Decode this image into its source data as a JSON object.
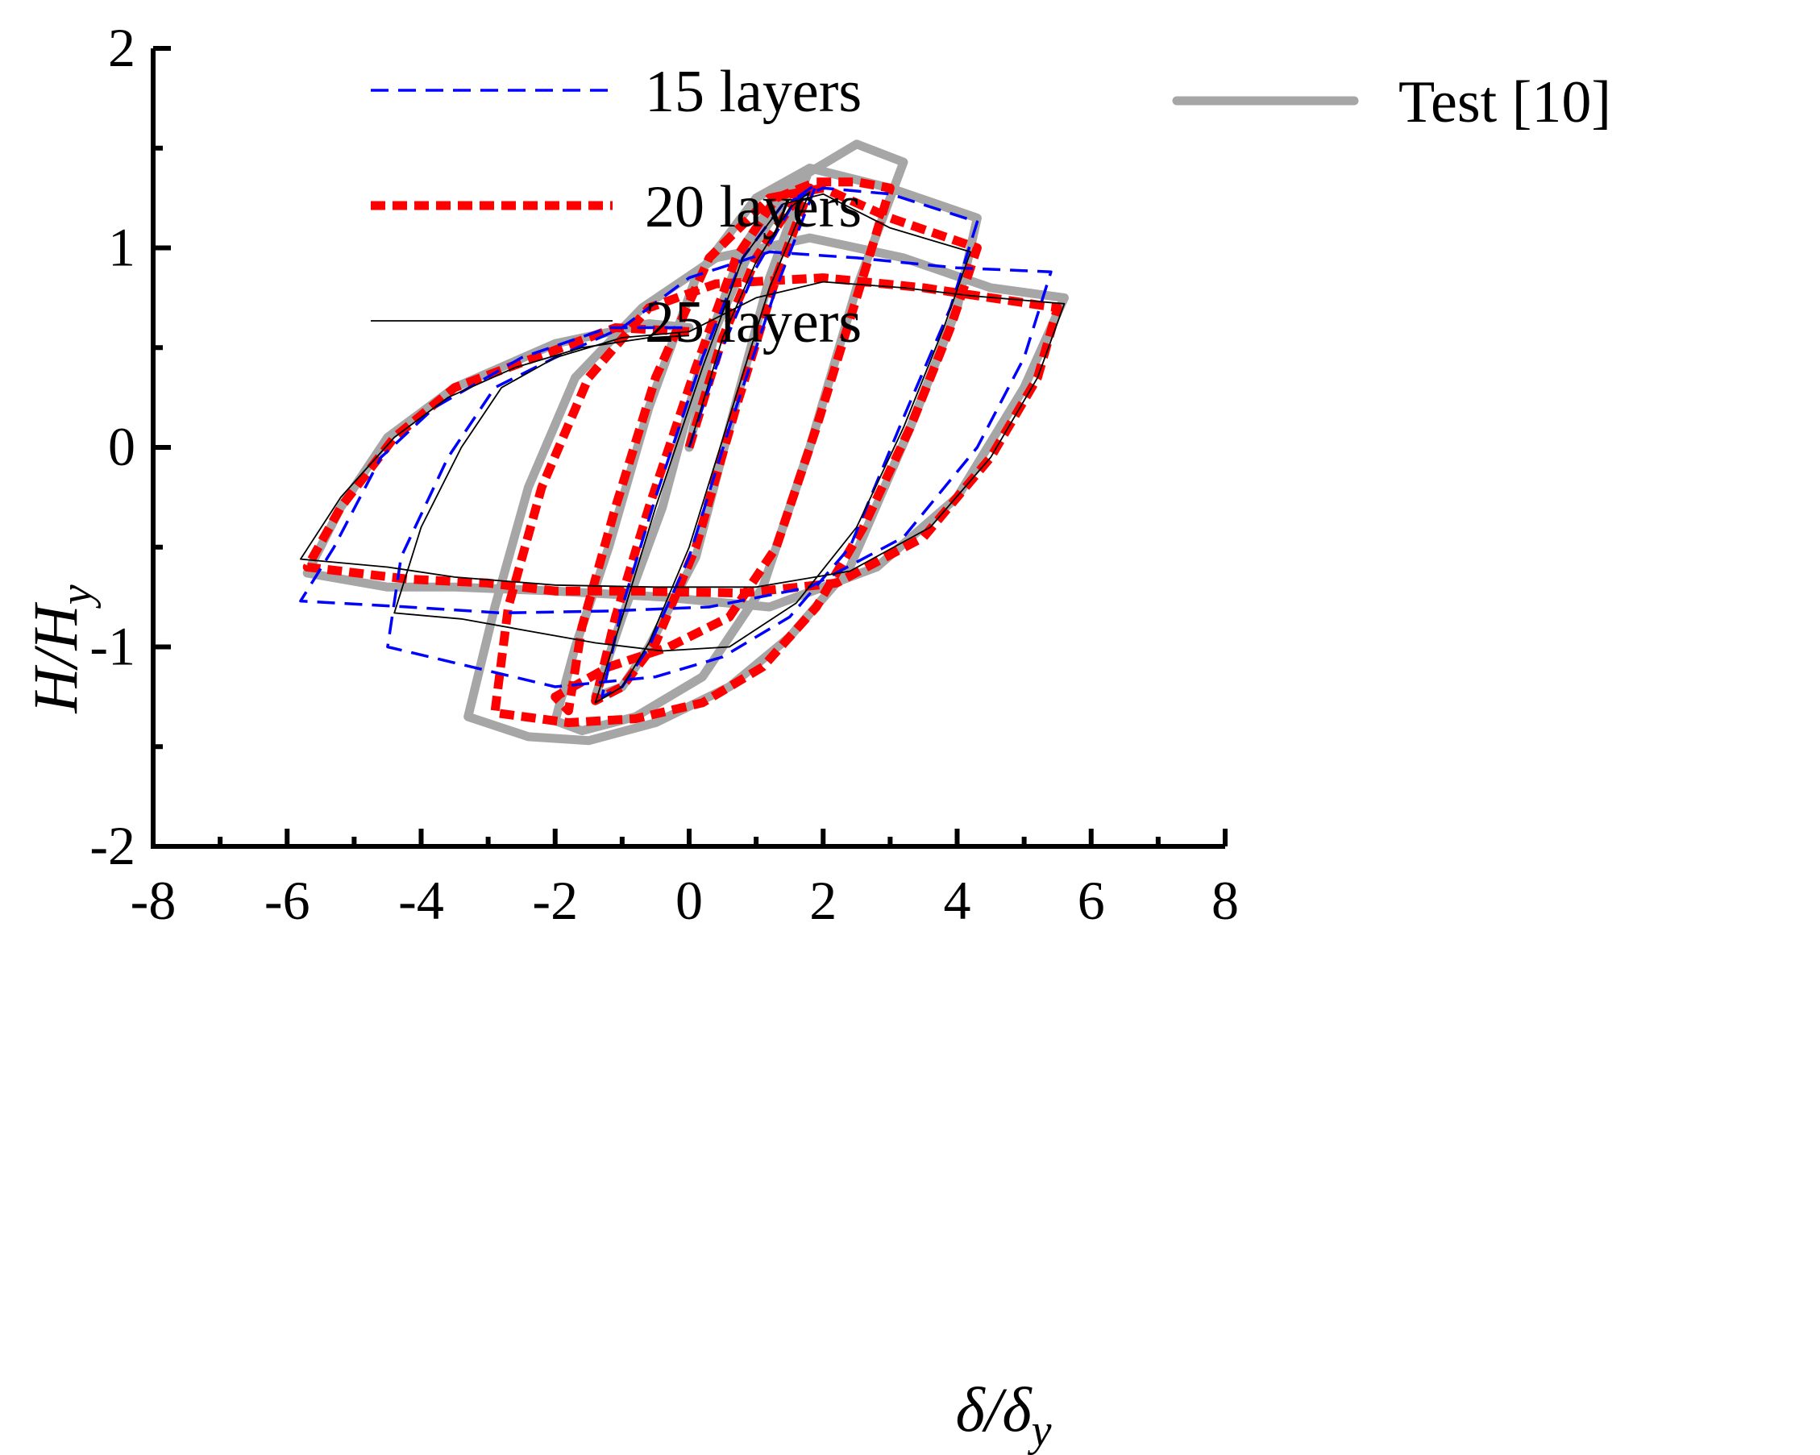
{
  "chart_data": {
    "type": "line",
    "title": "",
    "xlabel": {
      "main": "δ/δ",
      "sub": "y"
    },
    "ylabel": {
      "main": "H/H",
      "sub": "y"
    },
    "xlim": [
      -8,
      8
    ],
    "ylim": [
      -2,
      2
    ],
    "x_ticks": [
      -8,
      -6,
      -4,
      -2,
      0,
      2,
      4,
      6,
      8
    ],
    "y_ticks": [
      -2,
      -1,
      0,
      1,
      2
    ],
    "x_tick_labels": [
      "-8",
      "-6",
      "-4",
      "-2",
      "0",
      "2",
      "4",
      "6",
      "8"
    ],
    "y_tick_labels": [
      "-2",
      "-1",
      "0",
      "1",
      "2"
    ],
    "grid": false,
    "legend_position": "top",
    "series": [
      {
        "name": "Test [10]",
        "label": "Test [10]",
        "color": "#a6a6a6",
        "style": "solid-thick",
        "loops": [
          [
            [
              0,
              0
            ],
            [
              0.4,
              0.6
            ],
            [
              0.9,
              0.98
            ],
            [
              1.5,
              1.28
            ],
            [
              1.8,
              1.4
            ],
            [
              1.2,
              0.85
            ],
            [
              0.6,
              0.1
            ],
            [
              0.1,
              -0.55
            ],
            [
              -0.6,
              -1.0
            ],
            [
              -1.0,
              -1.2
            ],
            [
              -1.4,
              -1.25
            ],
            [
              -1.0,
              -0.85
            ],
            [
              -0.4,
              -0.3
            ],
            [
              0.2,
              0.45
            ],
            [
              0.8,
              1.0
            ],
            [
              1.4,
              1.3
            ],
            [
              2.0,
              1.42
            ],
            [
              2.5,
              1.52
            ],
            [
              3.2,
              1.43
            ],
            [
              2.5,
              0.8
            ],
            [
              1.8,
              0.0
            ],
            [
              1.1,
              -0.7
            ],
            [
              0.2,
              -1.15
            ],
            [
              -0.8,
              -1.35
            ],
            [
              -1.6,
              -1.42
            ],
            [
              -2.0,
              -1.37
            ],
            [
              -1.7,
              -1.0
            ],
            [
              -1.2,
              -0.5
            ],
            [
              -0.6,
              0.2
            ],
            [
              0.1,
              0.85
            ],
            [
              1.0,
              1.25
            ],
            [
              1.8,
              1.4
            ],
            [
              3.0,
              1.3
            ],
            [
              4.3,
              1.15
            ],
            [
              4.0,
              0.7
            ],
            [
              3.3,
              0.1
            ],
            [
              2.4,
              -0.6
            ],
            [
              1.5,
              -0.95
            ],
            [
              0.6,
              -1.2
            ],
            [
              -0.5,
              -1.38
            ],
            [
              -1.5,
              -1.47
            ],
            [
              -2.4,
              -1.45
            ],
            [
              -3.3,
              -1.35
            ],
            [
              -2.9,
              -0.8
            ],
            [
              -2.4,
              -0.2
            ],
            [
              -1.7,
              0.35
            ],
            [
              -0.7,
              0.7
            ],
            [
              0.4,
              0.95
            ],
            [
              1.8,
              1.05
            ],
            [
              3.2,
              0.95
            ],
            [
              4.5,
              0.8
            ],
            [
              5.6,
              0.75
            ],
            [
              5.0,
              0.3
            ],
            [
              4.0,
              -0.25
            ],
            [
              2.8,
              -0.6
            ],
            [
              1.2,
              -0.8
            ],
            [
              -0.4,
              -0.75
            ],
            [
              -2.0,
              -0.72
            ],
            [
              -3.5,
              -0.7
            ],
            [
              -4.5,
              -0.7
            ],
            [
              -5.7,
              -0.63
            ],
            [
              -5.2,
              -0.3
            ],
            [
              -4.5,
              0.05
            ],
            [
              -3.5,
              0.3
            ],
            [
              -2.0,
              0.52
            ],
            [
              -0.6,
              0.62
            ],
            [
              0.0,
              0.6
            ]
          ]
        ]
      },
      {
        "name": "20 layers",
        "label": "20 layers",
        "color": "#ff0000",
        "style": "dotted-thick",
        "loops": [
          [
            [
              0,
              0
            ],
            [
              0.5,
              0.55
            ],
            [
              1.0,
              0.95
            ],
            [
              1.5,
              1.2
            ],
            [
              1.8,
              1.3
            ],
            [
              1.3,
              0.85
            ],
            [
              0.7,
              0.2
            ],
            [
              0.1,
              -0.5
            ],
            [
              -0.5,
              -0.98
            ],
            [
              -1.0,
              -1.2
            ],
            [
              -1.4,
              -1.27
            ],
            [
              -1.1,
              -0.85
            ],
            [
              -0.6,
              -0.3
            ],
            [
              0.1,
              0.4
            ],
            [
              0.7,
              0.95
            ],
            [
              1.3,
              1.25
            ],
            [
              1.9,
              1.33
            ],
            [
              2.5,
              1.33
            ],
            [
              3.0,
              1.3
            ],
            [
              2.5,
              0.75
            ],
            [
              1.9,
              0.1
            ],
            [
              1.3,
              -0.5
            ],
            [
              0.6,
              -0.85
            ],
            [
              -0.3,
              -1.0
            ],
            [
              -1.2,
              -1.1
            ],
            [
              -2.0,
              -1.25
            ],
            [
              -1.8,
              -1.32
            ],
            [
              -1.6,
              -0.9
            ],
            [
              -1.1,
              -0.3
            ],
            [
              -0.5,
              0.35
            ],
            [
              0.3,
              0.95
            ],
            [
              1.2,
              1.25
            ],
            [
              2.0,
              1.3
            ],
            [
              3.0,
              1.15
            ],
            [
              4.3,
              1.0
            ],
            [
              3.9,
              0.6
            ],
            [
              3.3,
              0.1
            ],
            [
              2.6,
              -0.4
            ],
            [
              1.9,
              -0.8
            ],
            [
              1.1,
              -1.1
            ],
            [
              0.2,
              -1.28
            ],
            [
              -0.8,
              -1.36
            ],
            [
              -1.8,
              -1.38
            ],
            [
              -2.9,
              -1.33
            ],
            [
              -2.7,
              -0.8
            ],
            [
              -2.2,
              -0.2
            ],
            [
              -1.5,
              0.35
            ],
            [
              -0.6,
              0.7
            ],
            [
              0.4,
              0.82
            ],
            [
              2.0,
              0.85
            ],
            [
              3.5,
              0.8
            ],
            [
              5.5,
              0.7
            ],
            [
              5.2,
              0.35
            ],
            [
              4.5,
              -0.05
            ],
            [
              3.5,
              -0.45
            ],
            [
              2.2,
              -0.68
            ],
            [
              0.8,
              -0.73
            ],
            [
              -0.8,
              -0.72
            ],
            [
              -2.0,
              -0.72
            ],
            [
              -3.0,
              -0.68
            ],
            [
              -4.2,
              -0.66
            ],
            [
              -5.7,
              -0.6
            ],
            [
              -5.2,
              -0.3
            ],
            [
              -4.4,
              0.05
            ],
            [
              -3.5,
              0.3
            ],
            [
              -2.3,
              0.45
            ],
            [
              -1.1,
              0.6
            ],
            [
              0.0,
              0.58
            ]
          ]
        ]
      },
      {
        "name": "15 layers",
        "label": "15 layers",
        "color": "#0000ff",
        "style": "dashed",
        "loops": [
          [
            [
              0,
              0
            ],
            [
              0.5,
              0.5
            ],
            [
              1.0,
              0.9
            ],
            [
              1.6,
              1.25
            ],
            [
              1.9,
              1.32
            ],
            [
              1.3,
              0.8
            ],
            [
              0.6,
              0.1
            ],
            [
              0.0,
              -0.55
            ],
            [
              -0.6,
              -1.0
            ],
            [
              -1.0,
              -1.2
            ],
            [
              -1.3,
              -1.25
            ],
            [
              -1.0,
              -0.8
            ],
            [
              -0.5,
              -0.25
            ],
            [
              0.2,
              0.45
            ],
            [
              0.8,
              0.95
            ],
            [
              1.4,
              1.22
            ],
            [
              2.0,
              1.3
            ],
            [
              3.0,
              1.27
            ],
            [
              4.3,
              1.13
            ],
            [
              3.9,
              0.7
            ],
            [
              3.2,
              0.15
            ],
            [
              2.4,
              -0.5
            ],
            [
              1.5,
              -0.85
            ],
            [
              0.5,
              -1.05
            ],
            [
              -0.5,
              -1.15
            ],
            [
              -2.0,
              -1.2
            ],
            [
              -4.5,
              -1.0
            ],
            [
              -4.3,
              -0.55
            ],
            [
              -3.6,
              -0.05
            ],
            [
              -2.9,
              0.3
            ],
            [
              -2.0,
              0.45
            ],
            [
              -1.0,
              0.6
            ],
            [
              0.0,
              0.85
            ],
            [
              1.2,
              0.98
            ],
            [
              2.5,
              0.95
            ],
            [
              4.0,
              0.9
            ],
            [
              5.4,
              0.88
            ],
            [
              5.0,
              0.45
            ],
            [
              4.3,
              0.0
            ],
            [
              3.2,
              -0.45
            ],
            [
              1.8,
              -0.7
            ],
            [
              0.3,
              -0.8
            ],
            [
              -1.2,
              -0.82
            ],
            [
              -2.8,
              -0.83
            ],
            [
              -4.2,
              -0.8
            ],
            [
              -5.8,
              -0.77
            ],
            [
              -5.3,
              -0.5
            ],
            [
              -4.6,
              -0.05
            ],
            [
              -3.8,
              0.2
            ],
            [
              -2.5,
              0.45
            ],
            [
              -1.2,
              0.6
            ],
            [
              0.0,
              0.6
            ]
          ]
        ]
      },
      {
        "name": "25 layers",
        "label": "25 layers",
        "color": "#000000",
        "style": "solid-thin",
        "loops": [
          [
            [
              0,
              0
            ],
            [
              0.5,
              0.55
            ],
            [
              1.0,
              0.93
            ],
            [
              1.5,
              1.2
            ],
            [
              1.8,
              1.28
            ],
            [
              1.2,
              0.8
            ],
            [
              0.6,
              0.15
            ],
            [
              0.0,
              -0.5
            ],
            [
              -0.6,
              -0.98
            ],
            [
              -1.0,
              -1.2
            ],
            [
              -1.4,
              -1.28
            ],
            [
              -1.0,
              -0.85
            ],
            [
              -0.5,
              -0.3
            ],
            [
              0.2,
              0.4
            ],
            [
              0.8,
              0.95
            ],
            [
              1.4,
              1.22
            ],
            [
              2.0,
              1.27
            ],
            [
              3.0,
              1.1
            ],
            [
              4.2,
              0.98
            ],
            [
              3.8,
              0.6
            ],
            [
              3.2,
              0.1
            ],
            [
              2.5,
              -0.4
            ],
            [
              1.6,
              -0.78
            ],
            [
              0.6,
              -1.0
            ],
            [
              -0.4,
              -1.02
            ],
            [
              -1.4,
              -0.98
            ],
            [
              -2.4,
              -0.92
            ],
            [
              -3.4,
              -0.86
            ],
            [
              -4.4,
              -0.83
            ],
            [
              -4.0,
              -0.4
            ],
            [
              -3.4,
              0.0
            ],
            [
              -2.8,
              0.3
            ],
            [
              -2.0,
              0.45
            ],
            [
              -1.0,
              0.55
            ],
            [
              0.0,
              0.58
            ],
            [
              1.0,
              0.75
            ],
            [
              2.0,
              0.83
            ],
            [
              3.2,
              0.8
            ],
            [
              4.2,
              0.76
            ],
            [
              5.6,
              0.72
            ],
            [
              5.2,
              0.35
            ],
            [
              4.5,
              -0.05
            ],
            [
              3.6,
              -0.4
            ],
            [
              2.4,
              -0.62
            ],
            [
              1.0,
              -0.7
            ],
            [
              -0.5,
              -0.7
            ],
            [
              -2.0,
              -0.69
            ],
            [
              -3.5,
              -0.65
            ],
            [
              -4.5,
              -0.6
            ],
            [
              -5.8,
              -0.56
            ],
            [
              -5.2,
              -0.25
            ],
            [
              -4.4,
              0.05
            ],
            [
              -3.6,
              0.25
            ],
            [
              -2.6,
              0.4
            ],
            [
              -1.6,
              0.5
            ],
            [
              -0.6,
              0.55
            ],
            [
              0.0,
              0.56
            ]
          ]
        ]
      }
    ],
    "legend": [
      {
        "label": "15 layers",
        "color": "#0000ff",
        "style": "dashed"
      },
      {
        "label": "20 layers",
        "color": "#ff0000",
        "style": "dotted-thick"
      },
      {
        "label": "25 layers",
        "color": "#000000",
        "style": "solid-thin"
      },
      {
        "label": "Test [10]",
        "color": "#a6a6a6",
        "style": "solid-thick"
      }
    ]
  }
}
